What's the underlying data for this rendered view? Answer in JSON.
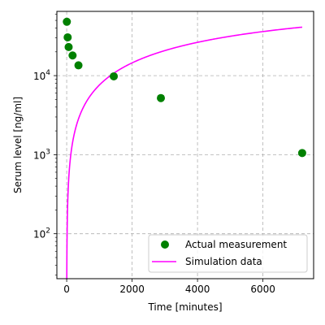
{
  "chart_data": {
    "type": "scatter",
    "xlabel": "Time [minutes]",
    "ylabel": "Serum level [ng/ml]",
    "xlim": [
      -300,
      7550
    ],
    "ylim": [
      27,
      65000
    ],
    "yscale": "log",
    "grid": true,
    "legend_position": "bottom-right",
    "x_ticks": [
      {
        "value": 0,
        "label": "0"
      },
      {
        "value": 2000,
        "label": "2000"
      },
      {
        "value": 4000,
        "label": "4000"
      },
      {
        "value": 6000,
        "label": "6000"
      }
    ],
    "y_ticks": [
      {
        "value": 100,
        "base": "10",
        "exp": "2"
      },
      {
        "value": 1000,
        "base": "10",
        "exp": "3"
      },
      {
        "value": 10000,
        "base": "10",
        "exp": "4"
      }
    ],
    "series": [
      {
        "name": "Actual measurement",
        "kind": "scatter",
        "color": "#008000",
        "x": [
          5,
          30,
          60,
          180,
          360,
          1440,
          2880,
          7200
        ],
        "y": [
          48000,
          30500,
          23000,
          18000,
          13500,
          9800,
          5200,
          1050
        ]
      },
      {
        "name": "Simulation data",
        "kind": "line",
        "color": "#ff00ff",
        "model": {
          "amplitude": 80000,
          "rate": 0.0001,
          "x_start": 0,
          "x_end": 7200
        }
      }
    ]
  }
}
